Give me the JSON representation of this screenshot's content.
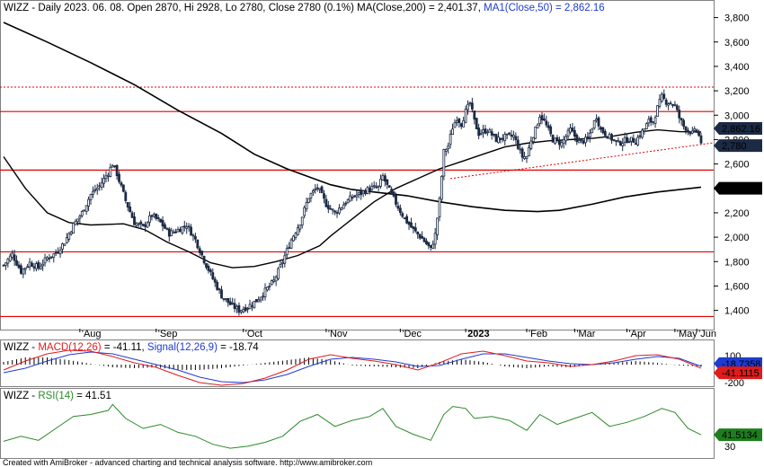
{
  "chart_data": [
    {
      "type": "candlestick",
      "title": "WIZZ - Daily 2023. 06. 08. Open 2870, Hi 2928, Lo 2780, Close 2780 (0.1%) MA(Close,200) = 2,401.37,",
      "ma50_label": "MA1(Close,50) = 2,862.16",
      "ylim": [
        1250,
        3900
      ],
      "yticks": [
        "1,400",
        "1,600",
        "1,800",
        "2,000",
        "2,200",
        "2,400",
        "2,600",
        "2,800",
        "3,000",
        "3,200",
        "3,400",
        "3,600",
        "3,800"
      ],
      "x_labels": [
        "Aug",
        "Sep",
        "Oct",
        "Nov",
        "Dec",
        "2023",
        "Feb",
        "Mar",
        "Apr",
        "May",
        "Jun"
      ],
      "close_path": [
        [
          0,
          1770
        ],
        [
          4,
          1860
        ],
        [
          8,
          1720
        ],
        [
          12,
          1790
        ],
        [
          16,
          1750
        ],
        [
          20,
          1830
        ],
        [
          24,
          1870
        ],
        [
          28,
          1960
        ],
        [
          32,
          2100
        ],
        [
          36,
          2200
        ],
        [
          40,
          2350
        ],
        [
          44,
          2420
        ],
        [
          48,
          2530
        ],
        [
          50,
          2600
        ],
        [
          52,
          2520
        ],
        [
          56,
          2300
        ],
        [
          60,
          2120
        ],
        [
          64,
          2080
        ],
        [
          68,
          2180
        ],
        [
          72,
          2120
        ],
        [
          76,
          2030
        ],
        [
          80,
          2060
        ],
        [
          84,
          2100
        ],
        [
          88,
          1980
        ],
        [
          92,
          1810
        ],
        [
          96,
          1660
        ],
        [
          100,
          1520
        ],
        [
          104,
          1450
        ],
        [
          108,
          1400
        ],
        [
          112,
          1430
        ],
        [
          116,
          1480
        ],
        [
          120,
          1560
        ],
        [
          124,
          1640
        ],
        [
          128,
          1800
        ],
        [
          132,
          1980
        ],
        [
          136,
          2120
        ],
        [
          140,
          2330
        ],
        [
          144,
          2410
        ],
        [
          148,
          2270
        ],
        [
          152,
          2200
        ],
        [
          156,
          2270
        ],
        [
          160,
          2330
        ],
        [
          164,
          2360
        ],
        [
          168,
          2400
        ],
        [
          172,
          2410
        ],
        [
          174,
          2500
        ],
        [
          176,
          2420
        ],
        [
          180,
          2280
        ],
        [
          184,
          2150
        ],
        [
          188,
          2060
        ],
        [
          192,
          1990
        ],
        [
          196,
          1900
        ],
        [
          198,
          2020
        ],
        [
          200,
          2300
        ],
        [
          202,
          2700
        ],
        [
          204,
          2750
        ],
        [
          206,
          2900
        ],
        [
          208,
          2980
        ],
        [
          210,
          2930
        ],
        [
          212,
          3030
        ],
        [
          214,
          3100
        ],
        [
          216,
          2950
        ],
        [
          218,
          2850
        ],
        [
          222,
          2880
        ],
        [
          226,
          2800
        ],
        [
          230,
          2820
        ],
        [
          234,
          2830
        ],
        [
          238,
          2660
        ],
        [
          240,
          2660
        ],
        [
          242,
          2800
        ],
        [
          244,
          2880
        ],
        [
          246,
          3000
        ],
        [
          248,
          2950
        ],
        [
          252,
          2800
        ],
        [
          256,
          2770
        ],
        [
          260,
          2880
        ],
        [
          264,
          2780
        ],
        [
          268,
          2800
        ],
        [
          270,
          2900
        ],
        [
          272,
          2990
        ],
        [
          274,
          2880
        ],
        [
          278,
          2820
        ],
        [
          282,
          2770
        ],
        [
          286,
          2800
        ],
        [
          290,
          2790
        ],
        [
          294,
          2890
        ],
        [
          296,
          2950
        ],
        [
          298,
          2950
        ],
        [
          300,
          3060
        ],
        [
          302,
          3150
        ],
        [
          304,
          3110
        ],
        [
          306,
          3100
        ],
        [
          308,
          3080
        ],
        [
          310,
          2980
        ],
        [
          312,
          2910
        ],
        [
          314,
          2880
        ],
        [
          316,
          2850
        ],
        [
          318,
          2880
        ],
        [
          320,
          2780
        ]
      ],
      "total_bars": 320,
      "ma200": [
        [
          0,
          3760
        ],
        [
          20,
          3600
        ],
        [
          40,
          3430
        ],
        [
          60,
          3250
        ],
        [
          80,
          3040
        ],
        [
          100,
          2850
        ],
        [
          115,
          2680
        ],
        [
          130,
          2560
        ],
        [
          150,
          2430
        ],
        [
          160,
          2390
        ],
        [
          175,
          2360
        ],
        [
          185,
          2340
        ],
        [
          200,
          2290
        ],
        [
          215,
          2250
        ],
        [
          230,
          2220
        ],
        [
          245,
          2210
        ],
        [
          255,
          2220
        ],
        [
          270,
          2270
        ],
        [
          285,
          2330
        ],
        [
          300,
          2370
        ],
        [
          320,
          2410
        ]
      ],
      "ma50": [
        [
          0,
          2660
        ],
        [
          10,
          2400
        ],
        [
          20,
          2200
        ],
        [
          30,
          2120
        ],
        [
          40,
          2100
        ],
        [
          55,
          2110
        ],
        [
          65,
          2060
        ],
        [
          75,
          1960
        ],
        [
          85,
          1880
        ],
        [
          95,
          1790
        ],
        [
          105,
          1750
        ],
        [
          115,
          1760
        ],
        [
          125,
          1800
        ],
        [
          135,
          1850
        ],
        [
          145,
          1930
        ],
        [
          150,
          2010
        ],
        [
          160,
          2150
        ],
        [
          170,
          2290
        ],
        [
          180,
          2400
        ],
        [
          190,
          2480
        ],
        [
          200,
          2560
        ],
        [
          210,
          2620
        ],
        [
          220,
          2680
        ],
        [
          230,
          2740
        ],
        [
          240,
          2770
        ],
        [
          250,
          2790
        ],
        [
          260,
          2800
        ],
        [
          270,
          2810
        ],
        [
          280,
          2830
        ],
        [
          290,
          2860
        ],
        [
          300,
          2880
        ],
        [
          310,
          2865
        ],
        [
          320,
          2862
        ]
      ],
      "hlines": [
        1350,
        1880,
        2550,
        3030
      ],
      "dotted_hline": 3230,
      "trendline": [
        [
          205,
          2480
        ],
        [
          320,
          2760
        ]
      ],
      "price_tags": [
        {
          "label": "2,862.16",
          "value": 2862,
          "color": "#1c2a44"
        },
        {
          "label": "2,780",
          "value": 2780,
          "color": "#1c2a44"
        },
        {
          "label": "2,401.37",
          "value": 2401,
          "color": "#000000"
        }
      ]
    },
    {
      "type": "line",
      "title_prefix": "WIZZ - ",
      "macd_label": "MACD(12,26)",
      "macd_value": " = -41.11, ",
      "signal_label": "Signal(12,26,9)",
      "signal_value": " = -18.74",
      "ylim": [
        -240,
        240
      ],
      "yticks": [
        "100",
        "-100",
        "-200"
      ],
      "macd": [
        [
          0,
          -60
        ],
        [
          10,
          40
        ],
        [
          20,
          120
        ],
        [
          30,
          160
        ],
        [
          40,
          150
        ],
        [
          50,
          90
        ],
        [
          60,
          20
        ],
        [
          70,
          -30
        ],
        [
          80,
          -120
        ],
        [
          90,
          -200
        ],
        [
          100,
          -230
        ],
        [
          110,
          -210
        ],
        [
          120,
          -150
        ],
        [
          130,
          -60
        ],
        [
          140,
          60
        ],
        [
          150,
          110
        ],
        [
          160,
          70
        ],
        [
          170,
          40
        ],
        [
          180,
          0
        ],
        [
          190,
          -60
        ],
        [
          200,
          20
        ],
        [
          210,
          120
        ],
        [
          220,
          150
        ],
        [
          230,
          100
        ],
        [
          240,
          40
        ],
        [
          250,
          20
        ],
        [
          260,
          -20
        ],
        [
          270,
          0
        ],
        [
          280,
          40
        ],
        [
          290,
          100
        ],
        [
          300,
          110
        ],
        [
          310,
          60
        ],
        [
          320,
          -41
        ]
      ],
      "signal": [
        [
          0,
          -90
        ],
        [
          10,
          -40
        ],
        [
          20,
          40
        ],
        [
          30,
          110
        ],
        [
          40,
          140
        ],
        [
          50,
          120
        ],
        [
          60,
          60
        ],
        [
          70,
          0
        ],
        [
          80,
          -60
        ],
        [
          90,
          -140
        ],
        [
          100,
          -190
        ],
        [
          110,
          -200
        ],
        [
          120,
          -170
        ],
        [
          130,
          -110
        ],
        [
          140,
          -20
        ],
        [
          150,
          60
        ],
        [
          160,
          80
        ],
        [
          170,
          60
        ],
        [
          180,
          30
        ],
        [
          190,
          -20
        ],
        [
          200,
          -10
        ],
        [
          210,
          60
        ],
        [
          220,
          120
        ],
        [
          230,
          120
        ],
        [
          240,
          80
        ],
        [
          250,
          40
        ],
        [
          260,
          10
        ],
        [
          270,
          0
        ],
        [
          280,
          20
        ],
        [
          290,
          60
        ],
        [
          300,
          90
        ],
        [
          310,
          70
        ],
        [
          320,
          -19
        ]
      ],
      "tags": [
        {
          "label": "-18.7358",
          "value": -18.74,
          "color": "#1f3bd1"
        },
        {
          "label": "-41.1115",
          "value": -41.11,
          "color": "#e01b1b"
        }
      ]
    },
    {
      "type": "line",
      "title_prefix": "WIZZ - ",
      "rsi_label": "RSI(14)",
      "rsi_value": " = 41.51",
      "ylim": [
        20,
        85
      ],
      "yticks": [
        "30"
      ],
      "rsi": [
        [
          0,
          35
        ],
        [
          8,
          40
        ],
        [
          16,
          36
        ],
        [
          24,
          48
        ],
        [
          32,
          60
        ],
        [
          40,
          62
        ],
        [
          48,
          66
        ],
        [
          50,
          72
        ],
        [
          56,
          58
        ],
        [
          64,
          48
        ],
        [
          72,
          52
        ],
        [
          80,
          44
        ],
        [
          88,
          40
        ],
        [
          96,
          32
        ],
        [
          104,
          28
        ],
        [
          112,
          30
        ],
        [
          120,
          34
        ],
        [
          128,
          40
        ],
        [
          136,
          55
        ],
        [
          144,
          62
        ],
        [
          152,
          50
        ],
        [
          160,
          56
        ],
        [
          168,
          60
        ],
        [
          174,
          68
        ],
        [
          180,
          50
        ],
        [
          188,
          42
        ],
        [
          196,
          36
        ],
        [
          202,
          62
        ],
        [
          206,
          70
        ],
        [
          212,
          68
        ],
        [
          216,
          58
        ],
        [
          224,
          60
        ],
        [
          232,
          56
        ],
        [
          240,
          46
        ],
        [
          246,
          62
        ],
        [
          254,
          52
        ],
        [
          262,
          58
        ],
        [
          270,
          64
        ],
        [
          278,
          50
        ],
        [
          286,
          54
        ],
        [
          294,
          60
        ],
        [
          302,
          68
        ],
        [
          308,
          64
        ],
        [
          314,
          48
        ],
        [
          320,
          41.51
        ]
      ],
      "tags": [
        {
          "label": "41.5134",
          "value": 41.51,
          "color": "#1e7d1e"
        }
      ]
    }
  ],
  "footer": {
    "text": "Created with AmiBroker - advanced charting and technical analysis software. http://www.amibroker.com"
  },
  "colors": {
    "candle": "#1c2a44",
    "ma": "#000000",
    "hline": "#e00000",
    "macd": "#e01b1b",
    "signal": "#1f3bd1",
    "rsi": "#2a8a2a"
  }
}
